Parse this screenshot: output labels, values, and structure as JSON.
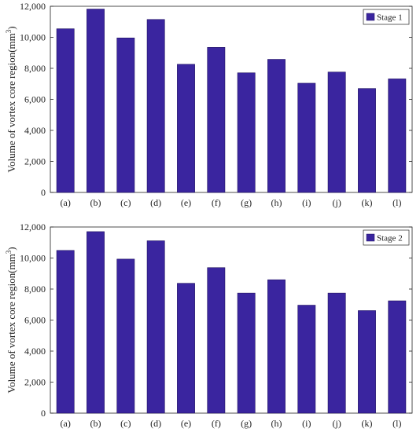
{
  "chart_data": [
    {
      "type": "bar",
      "title": "",
      "xlabel": "",
      "ylabel": "Volume of vortex core region(mm",
      "ylabel_sup": "3",
      "ylabel_close": ")",
      "categories": [
        "(a)",
        "(b)",
        "(c)",
        "(d)",
        "(e)",
        "(f)",
        "(g)",
        "(h)",
        "(i)",
        "(j)",
        "(k)",
        "(l)"
      ],
      "series": [
        {
          "name": "Stage 1",
          "values": [
            10550,
            11820,
            9960,
            11150,
            8260,
            9350,
            7710,
            8580,
            7040,
            7760,
            6700,
            7320
          ]
        }
      ],
      "ylim": [
        0,
        12000
      ],
      "yticks": [
        0,
        2000,
        4000,
        6000,
        8000,
        10000,
        12000
      ],
      "ytick_labels": [
        "0",
        "2,000",
        "4,000",
        "6,000",
        "8,000",
        "10,000",
        "12,000"
      ],
      "grid": false,
      "legend_position": "top-right",
      "bar_color": "#3a259f"
    },
    {
      "type": "bar",
      "title": "",
      "xlabel": "",
      "ylabel": "Volume of vortex core region(mm",
      "ylabel_sup": "3",
      "ylabel_close": ")",
      "categories": [
        "(a)",
        "(b)",
        "(c)",
        "(d)",
        "(e)",
        "(f)",
        "(g)",
        "(h)",
        "(i)",
        "(j)",
        "(k)",
        "(l)"
      ],
      "series": [
        {
          "name": "Stage 2",
          "values": [
            10490,
            11700,
            9930,
            11110,
            8370,
            9380,
            7740,
            8600,
            6960,
            7740,
            6610,
            7240
          ]
        }
      ],
      "ylim": [
        0,
        12000
      ],
      "yticks": [
        0,
        2000,
        4000,
        6000,
        8000,
        10000,
        12000
      ],
      "ytick_labels": [
        "0",
        "2,000",
        "4,000",
        "6,000",
        "8,000",
        "10,000",
        "12,000"
      ],
      "grid": false,
      "legend_position": "top-right",
      "bar_color": "#3a259f"
    }
  ]
}
